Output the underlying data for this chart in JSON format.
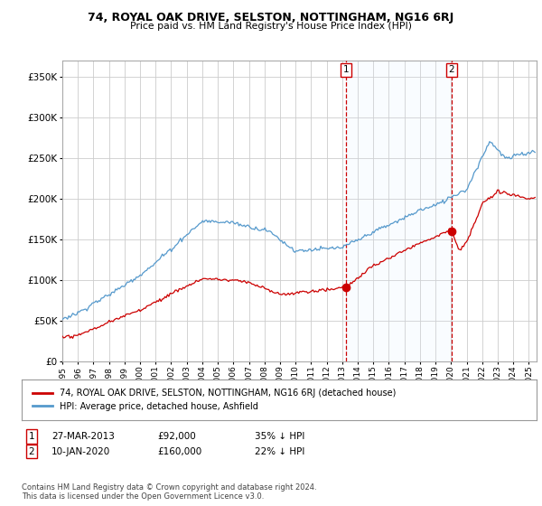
{
  "title": "74, ROYAL OAK DRIVE, SELSTON, NOTTINGHAM, NG16 6RJ",
  "subtitle": "Price paid vs. HM Land Registry's House Price Index (HPI)",
  "legend_line1": "74, ROYAL OAK DRIVE, SELSTON, NOTTINGHAM, NG16 6RJ (detached house)",
  "legend_line2": "HPI: Average price, detached house, Ashfield",
  "annotation1_label": "1",
  "annotation1_date": "27-MAR-2013",
  "annotation1_price": "£92,000",
  "annotation1_hpi": "35% ↓ HPI",
  "annotation1_year": 2013.23,
  "annotation1_value": 92000,
  "annotation2_label": "2",
  "annotation2_date": "10-JAN-2020",
  "annotation2_price": "£160,000",
  "annotation2_hpi": "22% ↓ HPI",
  "annotation2_year": 2020.03,
  "annotation2_value": 160000,
  "hpi_color": "#5599cc",
  "price_color": "#cc0000",
  "vline_color": "#cc0000",
  "span_color": "#ddeeff",
  "ylim": [
    0,
    370000
  ],
  "yticks": [
    0,
    50000,
    100000,
    150000,
    200000,
    250000,
    300000,
    350000
  ],
  "xlim_left": 1995.0,
  "xlim_right": 2025.5,
  "background_color": "#ffffff",
  "grid_color": "#cccccc",
  "footnote": "Contains HM Land Registry data © Crown copyright and database right 2024.\nThis data is licensed under the Open Government Licence v3.0."
}
